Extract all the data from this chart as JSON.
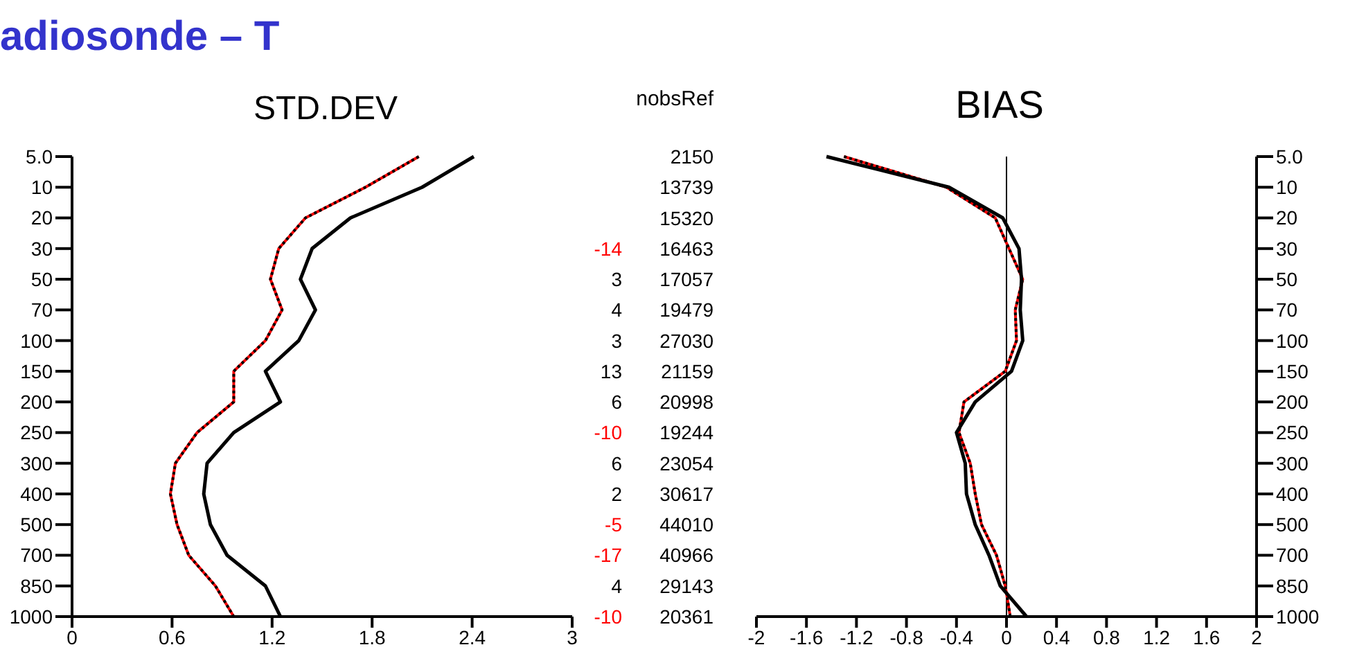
{
  "chart_data": [
    {
      "type": "line",
      "title": "adiosonde – T",
      "subtitle": "STD.DEV",
      "orientation": "horizontal",
      "marker": "none",
      "categories": [
        "5.0",
        "10",
        "20",
        "30",
        "50",
        "70",
        "100",
        "150",
        "200",
        "250",
        "300",
        "400",
        "500",
        "700",
        "850",
        "1000"
      ],
      "xlim": [
        0,
        3
      ],
      "xticks": [
        0,
        0.6,
        1.2,
        1.8,
        2.4,
        3
      ],
      "series": [
        {
          "color": "#ff0000",
          "values": [
            2.08,
            1.76,
            1.4,
            1.24,
            1.19,
            1.26,
            1.16,
            0.97,
            0.97,
            0.75,
            0.62,
            0.59,
            0.63,
            0.7,
            0.86,
            0.97
          ]
        },
        {
          "color": "#000000",
          "line_style": "dotted",
          "values": [
            2.08,
            1.76,
            1.4,
            1.24,
            1.19,
            1.26,
            1.16,
            0.97,
            0.97,
            0.75,
            0.62,
            0.59,
            0.63,
            0.7,
            0.86,
            0.97
          ]
        },
        {
          "color": "#000000",
          "values": [
            2.41,
            2.1,
            1.67,
            1.44,
            1.37,
            1.46,
            1.36,
            1.16,
            1.25,
            0.97,
            0.81,
            0.79,
            0.83,
            0.93,
            1.16,
            1.25
          ]
        }
      ]
    },
    {
      "type": "other",
      "colors": [
        "#ff0000",
        "#000000",
        "#000000",
        "#000000",
        "#000000",
        "#000000",
        "#ff0000",
        "#000000",
        "#000000",
        "#ff0000",
        "#ff0000",
        "#000000",
        "#ff0000"
      ],
      "annotations": [
        "-14",
        "3",
        "4",
        "3",
        "13",
        "6",
        "-10",
        "6",
        "2",
        "-5",
        "-17",
        "4",
        "-10"
      ]
    },
    {
      "type": "other",
      "title": "nobsRef",
      "colors": [
        "#000000"
      ],
      "annotations": [
        "2150",
        "13739",
        "15320",
        "16463",
        "17057",
        "19479",
        "27030",
        "21159",
        "20998",
        "19244",
        "23054",
        "30617",
        "44010",
        "40966",
        "29143",
        "20361"
      ]
    },
    {
      "type": "line",
      "title": "BIAS",
      "orientation": "horizontal",
      "marker": "none",
      "categories": [
        "5.0",
        "10",
        "20",
        "30",
        "50",
        "70",
        "100",
        "150",
        "200",
        "250",
        "300",
        "400",
        "500",
        "700",
        "850",
        "1000"
      ],
      "xlim": [
        -2,
        2
      ],
      "xticks": [
        -2,
        -1.6,
        -1.2,
        -0.8,
        -0.4,
        0,
        0.4,
        0.8,
        1.2,
        1.6,
        2
      ],
      "ref_lines": [
        {
          "axis": "x",
          "value": 0,
          "color": "#000000"
        }
      ],
      "series": [
        {
          "color": "#ff0000",
          "values": [
            -1.3,
            -0.48,
            -0.09,
            0.02,
            0.13,
            0.07,
            0.08,
            -0.01,
            -0.34,
            -0.38,
            -0.29,
            -0.25,
            -0.2,
            -0.08,
            -0.01,
            0.03
          ]
        },
        {
          "color": "#000000",
          "line_style": "dotted",
          "values": [
            -1.3,
            -0.48,
            -0.09,
            0.02,
            0.13,
            0.07,
            0.08,
            -0.01,
            -0.34,
            -0.38,
            -0.29,
            -0.25,
            -0.2,
            -0.08,
            -0.01,
            0.03
          ]
        },
        {
          "color": "#000000",
          "values": [
            -1.44,
            -0.46,
            -0.03,
            0.1,
            0.12,
            0.11,
            0.13,
            0.04,
            -0.25,
            -0.4,
            -0.33,
            -0.32,
            -0.25,
            -0.14,
            -0.05,
            0.16
          ]
        }
      ]
    }
  ]
}
